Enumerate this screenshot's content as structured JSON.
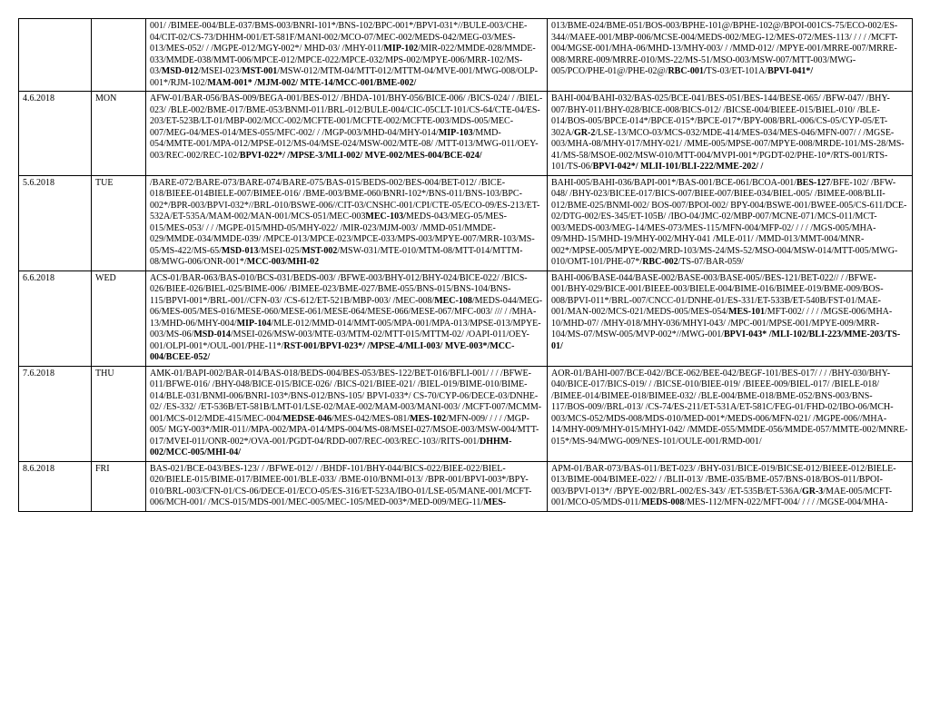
{
  "rows": [
    {
      "date": "",
      "day": "",
      "c3_html": "001/ /BIMEE-004/BLE-037/BMS-003/BNRI-101*/BNS-102/BPC-001*/BPVI-031*//BULE-003/CHE-04/CIT-02/CS-73/DHHM-001/ET-581F/MANI-002/MCO-07/MEC-002/MEDS-042/MEG-03/MES-013/MES-052/ / /MGPE-012/MGY-002*/ MHD-03/ /MHY-011/<b>MIP-102</b>/MIR-022/MMDE-028/MMDE-033/MMDE-038/MMT-006/MPCE-012/MPCE-022/MPCE-032/MPS-002/MPYE-006/MRR-102/MS-03/<b>MSD-012</b>/MSEI-023/<b>MST-001</b>/MSW-012/MTM-04/MTT-012/MTTM-04/MVE-001/MWG-008/OLP-001*/RJM-102/<b>MAM-001* /MJM-002/ MTE-14/MCC-001/BME-002/</b>",
      "c4_html": "013/BME-024/BME-051/BOS-003/BPHE-101@/BPHE-102@/BPOI-001CS-75/ECO-002/ES-344//MAEE-001/MBP-006/MCSE-004/MEDS-002/MEG-12/MES-072/MES-113/ / / / /MCFT-004/MGSE-001/MHA-06/MHD-13/MHY-003/ / /MMD-012/ /MPYE-001/MRRE-007/MRRE-008/MRRE-009/MRRE-010/MS-22/MS-51/MSO-003/MSW-007/MTT-003/MWG-005/PCO/PHE-01@/PHE-02@/<b>RBC-001/</b>TS-03/ET-101A/<b>BPVI-041*/</b>"
    },
    {
      "date": "4.6.2018",
      "day": "MON",
      "c3_html": "AFW-01/BAR-056/BAS-009/BEGA-001/BES-012/ /BHDA-101/BHY-056/BICE-006/ /BICS-024/ / /BIEL-023/ /BLE-002/BME-017/BME-053/BNMI-011/BRL-012/BULE-004/CIC-05CLT-101/CS-64/CTE-04/ES-203/ET-523B/LT-01/MBP-002/MCC-002/MCFTE-001/MCFTE-002/MCFTE-003/MDS-005/MEC-007/MEG-04/MES-014/MES-055/MFC-002/ / /MGP-003/MHD-04/MHY-014/<b>MIP-103</b>/MMD-054/MMTE-001/MPA-012/MPSE-012/MS-04/MSE-024/MSW-002/MTE-08/ /MTT-013/MWG-011/OEY-003/REC-002/REC-102/<b>BPVI-022*/ /MPSE-3/MLI-002/ MVE-002/MES-004/BCE-024/</b>",
      "c4_html": "BAHI-004/BAHI-032/BAS-025/BCE-041/BES-051/BES-144/BESE-065/ /BFW-047/ /BHY-007/BHY-011/BHY-028/BICE-008/BICS-012/ /BICSE-004/BIEEE-015/BIEL-010/ /BLE-014/BOS-005/BPCE-014*/BPCE-015*/BPCE-017*/BPY-008/BRL-006/CS-05/CYP-05/ET-302A/<b>GR-2</b>/LSE-13/MCO-03/MCS-032/MDE-414/MES-034/MES-046/MFN-007/ / /MGSE-003/MHA-08/MHY-017/MHY-021/ /MME-005/MPSE-007/MPYE-008/MRDE-101/MS-28/MS-41/MS-58/MSOE-002/MSW-010/MTT-004/MVPI-001*/PGDT-02/PHE-10*/RTS-001/RTS-101/TS-06/<b>BPVI-042*/ MLII-101/BLI-222/MME-202/ /</b>"
    },
    {
      "date": "5.6.2018",
      "day": "TUE",
      "c3_html": "/BARE-072/BARE-073/BARE-074/BARE-075/BAS-015/BEDS-002/BES-004/BET-012/ /BICE-018/BIEEE-014BIELE-007/BIMEE-016/ /BME-003/BME-060/BNRI-102*/BNS-011/BNS-103/BPC-002*/BPR-003/BPVI-032*//BRL-010/BSWE-006//CIT-03/CNSHC-001/CPI/CTE-05/ECO-09/ES-213/ET-532A/ET-535A/MAM-002/MAN-001/MCS-051/MEC-003<b>MEC-103/</b>MEDS-043/MEG-05/MES-015/MES-053/ / / /MGPE-015/MHD-05/MHY-022/ /MIR-023/MJM-003/ /MMD-051/MMDE-029/MMDE-034/MMDE-039/ /MPCE-013/MPCE-023/MPCE-033/MPS-003/MPYE-007/MRR-103/MS-05/MS-422/MS-65/<b>MSD-013</b>/MSEI-025/<b>MST-002</b>/MSW-031/MTE-010/MTM-08/MTT-014/MTTM-08/MWG-006/ONR-001*/<b>MCC-003/MHI-02</b>",
      "c4_html": "BAHI-005/BAHI-036/BAPI-001*/BAS-001/BCE-061/BCOA-001/<b>BES-127</b>/BFE-102/ /BFW-048/ /BHY-023/BICEE-017/BICS-007/BIEE-007/BIEE-034/BIEL-005/ /BIMEE-008/BLII-012/BME-025/BNMI-002/ BOS-007/BPOI-002/ BPY-004/BSWE-001/BWEE-005/CS-611/DCE-02/DTG-002/ES-345/ET-105B/ /IBO-04/JMC-02/MBP-007/MCNE-071/MCS-011/MCT-003/MEDS-003/MEG-14/MES-073/MES-115/MFN-004/MFP-02/ / / / /MGS-005/MHA-09/MHD-15/MHD-19/MHY-002/MHY-041 /MLE-011/ /MMD-013/MMT-004/MNR-002*/MPSE-005/MPYE-002/MRD-103/MS-24/MS-52/MSO-004/MSW-014/MTT-005/MWG-010/OMT-101/PHE-07*/<b>RBC-002</b>/TS-07/BAR-059/"
    },
    {
      "date": "6.6.2018",
      "day": "WED",
      "c3_html": "ACS-01/BAR-063/BAS-010/BCS-031/BEDS-003/ /BFWE-003/BHY-012/BHY-024/BICE-022/ /BICS-026/BIEE-026/BIEL-025/BIME-006/ /BIMEE-023/BME-027/BME-055/BNS-015/BNS-104/BNS-115/BPVI-001*/BRL-001//CFN-03/ /CS-612/ET-521B/MBP-003/ /MEC-008/<b>MEC-108</b>/MEDS-044/MEG-06/MES-005/MES-016/MESE-060/MESE-061/MESE-064/MESE-066/MESE-067/MFC-003/ /// / /MHA-13/MHD-06/MHY-004/<b>MIP-104</b>/MLE-012/MMD-014/MMT-005/MPA-001/MPA-013/MPSE-013/MPYE-003/MS-06/<b>MSD-014</b>/MSEI-026/MSW-003/MTE-03/MTM-02/MTT-015/MTTM-02/ /OAPI-011/OEY-001/OLPI-001*/OUL-001/PHE-11*/<b>RST-001/BPVI-023*/ /MPSE-4/MLI-003/ MVE-003*/MCC-004/BCEE-052/</b>",
      "c4_html": "BAHI-006/BASE-044/BASE-002/BASE-003/BASE-005//BES-121/BET-022// / /BFWE-001/BHY-029/BICE-001/BIEEE-003/BIELE-004/BIME-016/BIMEE-019/BME-009/BOS-008/BPVI-011*/BRL-007/CNCC-01/DNHE-01/ES-331/ET-533B/ET-540B/FST-01/MAE-001/MAN-002/MCS-021/MEDS-005/MES-054/<b>MES-101</b>/MFT-002/ / / / /MGSE-006/MHA-10/MHD-07/ /MHY-018/MHY-036/MHYI-043/ /MPC-001/MPSE-001/MPYE-009/MRR-104/MS-07/MSW-005/MVP-002*//MWG-001/<b>BPVI-043* /MLI-102/BLI-223/MME-203/TS-01/</b>"
    },
    {
      "date": "7.6.2018",
      "day": "THU",
      "c3_html": "AMK-01/BAPI-002/BAR-014/BAS-018/BEDS-004/BES-053/BES-122/BET-016/BFLI-001/ / / /BFWE-011/BFWE-016/ /BHY-048/BICE-015/BICE-026/ /BICS-021/BIEE-021/ /BIEL-019/BIME-010/BIME-014/BLE-031/BNMI-006/BNRI-103*/BNS-012/BNS-105/ BPVI-033*/ CS-70/CYP-06/DECE-03/DNHE-02/ /ES-332/ /ET-536B/ET-581B/LMT-01/LSE-02/MAE-002/MAM-003/MANI-003/ /MCFT-007/MCMM-001/MCS-012/MDE-415/MEC-004/<b>MEDSE-046</b>/MES-042/MES-081/<b>MES-102</b>/MFN-009/ / / / /MGP-005/ MGY-003*/MIR-011//MPA-002/MPA-014/MPS-004/MS-08/MSEI-027/MSOE-003/MSW-004/MTT-017/MVEI-011/ONR-002*/OVA-001/PGDT-04/RDD-007/REC-003/REC-103//RITS-001/<b>DHHM-002/MCC-005/MHI-04/</b>",
      "c4_html": "AOR-01/BAHI-007/BCE-042//BCE-062/BEE-042/BEGF-101/BES-017/ / / /BHY-030/BHY-040/BICE-017/BICS-019/ / /BICSE-010/BIEE-019/ /BIEEE-009/BIEL-017/ /BIELE-018/ /BIMEE-014/BIMEE-018/BIMEE-032/ /BLE-004/BME-018/BME-052/BNS-003/BNS-117/BOS-009//BRL-013/ /CS-74/ES-211/ET-531A/ET-581C/FEG-01/FHD-02/IBO-06/MCH-003/MCS-052/MDS-008/MDS-010/MED-001*/MEDS-006/MFN-021/ /MGPE-006//MHA-14/MHY-009/MHY-015/MHYI-042/ /MMDE-055/MMDE-056/MMDE-057/MMTE-002/MNRE-015*/MS-94/MWG-009/NES-101/OULE-001/RMD-001/"
    },
    {
      "date": "8.6.2018",
      "day": "FRI",
      "c3_html": "BAS-021/BCE-043/BES-123/ / /BFWE-012/ / /BHDF-101/BHY-044/BICS-022/BIEE-022/BIEL-020/BIELE-015/BIME-017/BIMEE-001/BLE-033/ /BME-010/BNMI-013/ /BPR-001/BPVI-003*/BPY-010/BRL-003/CFN-01/CS-06/DECE-01/ECO-05/ES-316/ET-523A/IBO-01/LSE-05/MANE-001/MCFT-006/MCH-001/ /MCS-015/MDS-001/MEC-005/MEC-105/MED-003*/MED-009/MEG-11/<b>MES-</b>",
      "c4_html": "APM-01/BAR-073/BAS-011/BET-023/ /BHY-031/BICE-019/BICSE-012/BIEEE-012/BIELE-013/BIME-004/BIMEE-022/ / /BLII-013/ /BME-035/BME-057/BNS-018/BOS-011/BPOI-003/BPVI-013*/ /BPYE-002/BRL-002/ES-343/ /ET-535B/ET-536A/<b>GR-3</b>/MAE-005/MCFT-001/MCO-05/MDS-011/<b>MEDS-008</b>/MES-112/MFN-022/MFT-004/ / / / /MGSE-004/MHA-"
    }
  ]
}
